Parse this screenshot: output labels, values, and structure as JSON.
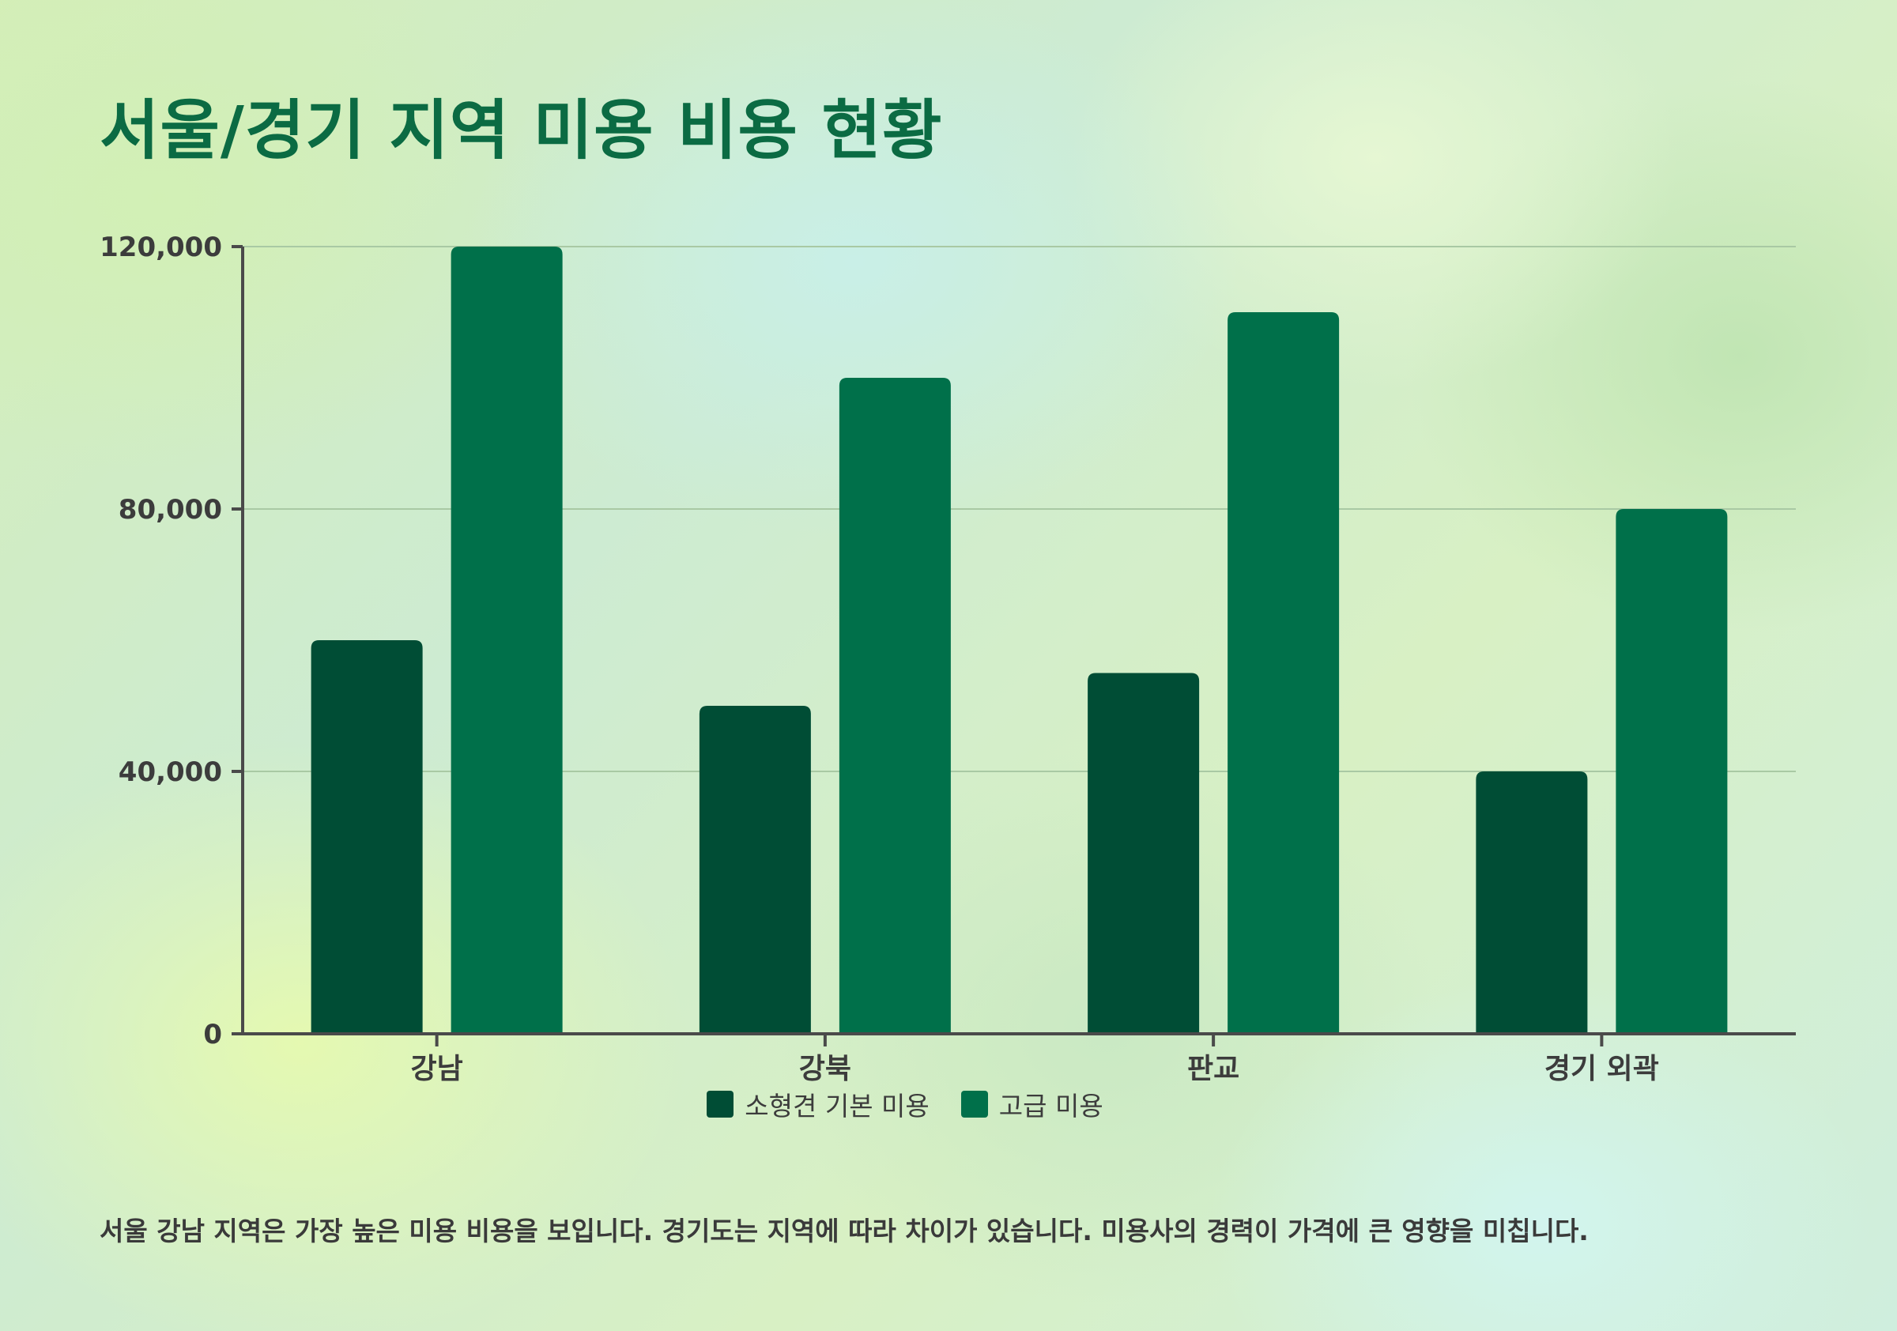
{
  "title": "서울/경기 지역 미용 비용 현황",
  "note": "서울 강남 지역은 가장 높은 미용 비용을 보입니다. 경기도는 지역에 따라 차이가 있습니다. 미용사의 경력이 가격에 큰 영향을 미칩니다.",
  "colors": {
    "basic": "#004d35",
    "premium": "#00704a",
    "axis": "#4a4a4a",
    "grid": "#a9c9a4",
    "tick_text": "#3c3c3c"
  },
  "chart_data": {
    "type": "bar",
    "categories": [
      "강남",
      "강북",
      "판교",
      "경기 외곽"
    ],
    "series": [
      {
        "name": "소형견 기본 미용",
        "values": [
          60000,
          50000,
          55000,
          40000
        ]
      },
      {
        "name": "고급 미용",
        "values": [
          120000,
          100000,
          110000,
          80000
        ]
      }
    ],
    "yticks": [
      "0",
      "40,000",
      "80,000",
      "120,000"
    ],
    "ytick_values": [
      0,
      40000,
      80000,
      120000
    ],
    "ylim": [
      0,
      120000
    ],
    "grid": true,
    "legend_position": "bottom"
  }
}
